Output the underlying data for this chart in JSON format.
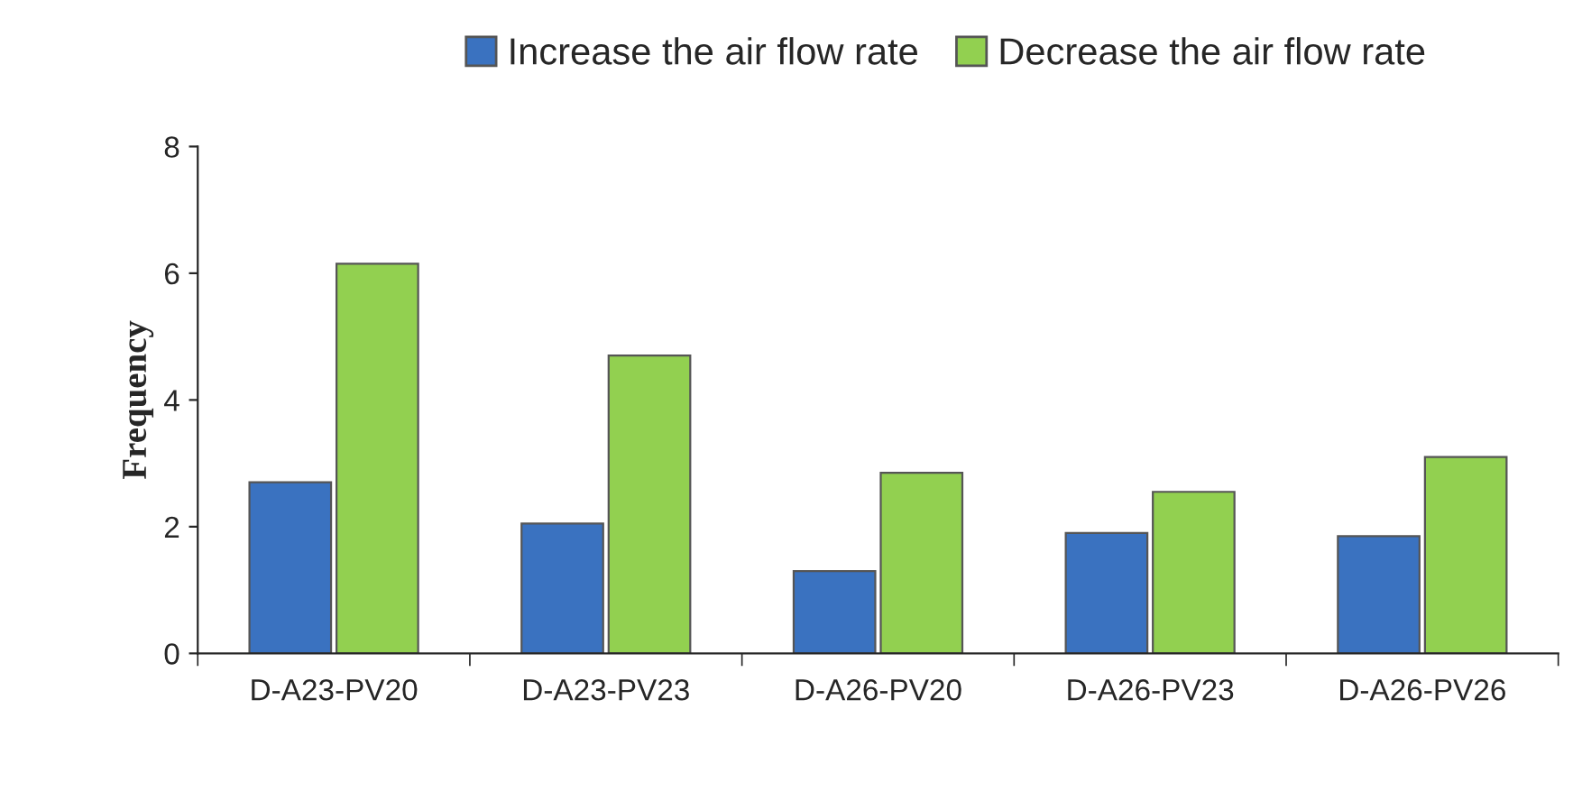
{
  "chart_data": {
    "type": "bar",
    "ylabel": "Frequency",
    "categories": [
      "D-A23-PV20",
      "D-A23-PV23",
      "D-A26-PV20",
      "D-A26-PV23",
      "D-A26-PV26"
    ],
    "series": [
      {
        "name": "Increase the air flow rate",
        "color": "#3a72c0",
        "values": [
          2.7,
          2.05,
          1.3,
          1.9,
          1.85
        ]
      },
      {
        "name": "Decrease the air flow rate",
        "color": "#92d050",
        "values": [
          6.15,
          4.7,
          2.85,
          2.55,
          3.1
        ]
      }
    ],
    "ylim": [
      0,
      8
    ],
    "yticks": [
      0,
      2,
      4,
      6,
      8
    ],
    "grid": false,
    "legend": "top"
  }
}
